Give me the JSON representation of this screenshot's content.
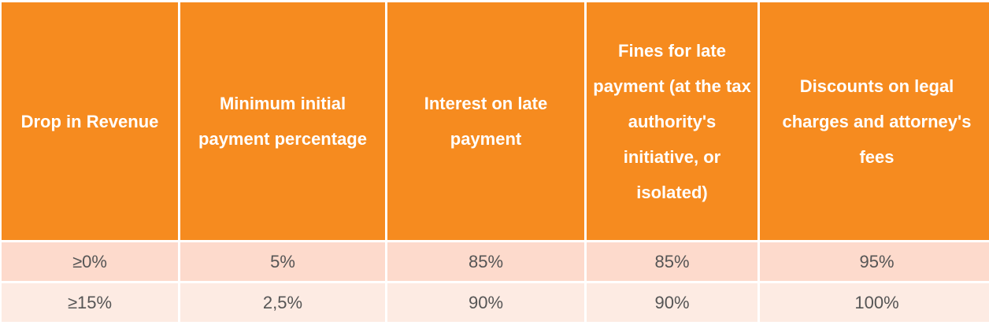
{
  "table": {
    "header": [
      "Drop in Revenue",
      "Minimum initial payment percentage",
      "Interest on late payment",
      "Fines for late payment (at the tax authority's initiative, or isolated)",
      "Discounts on legal charges and attorney's fees"
    ],
    "rows": [
      [
        "≥0%",
        "5%",
        "85%",
        "85%",
        "95%"
      ],
      [
        "≥15%",
        "2,5%",
        "90%",
        "90%",
        "100%"
      ]
    ]
  }
}
